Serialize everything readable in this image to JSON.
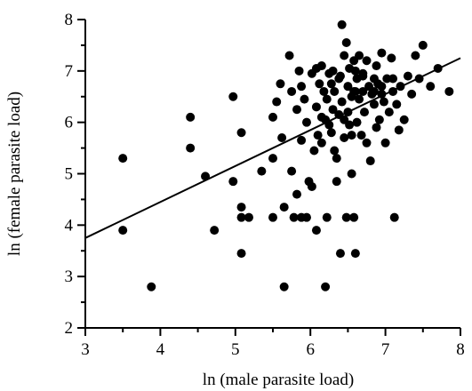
{
  "chart_data": {
    "type": "scatter",
    "title": "",
    "xlabel": "ln (male parasite load)",
    "ylabel": "ln (female parasite load)",
    "xlim": [
      3,
      8
    ],
    "ylim": [
      2,
      8
    ],
    "x_ticks": [
      "3",
      "4",
      "5",
      "6",
      "7",
      "8"
    ],
    "y_ticks": [
      "2",
      "3",
      "4",
      "5",
      "6",
      "7",
      "8"
    ],
    "grid": false,
    "legend": "none",
    "colors": {
      "points": "#000000",
      "axes": "#000000",
      "background": "#ffffff"
    },
    "fit_line": {
      "x": [
        3,
        8
      ],
      "y": [
        3.75,
        7.25
      ]
    },
    "series": [
      {
        "points": [
          [
            3.5,
            5.3
          ],
          [
            3.5,
            3.9
          ],
          [
            3.88,
            2.8
          ],
          [
            4.4,
            6.1
          ],
          [
            4.4,
            5.5
          ],
          [
            4.6,
            4.95
          ],
          [
            4.72,
            3.9
          ],
          [
            4.97,
            6.5
          ],
          [
            4.97,
            4.85
          ],
          [
            5.08,
            5.8
          ],
          [
            5.08,
            4.35
          ],
          [
            5.08,
            3.45
          ],
          [
            5.08,
            4.15
          ],
          [
            5.18,
            4.15
          ],
          [
            5.35,
            5.05
          ],
          [
            5.5,
            6.1
          ],
          [
            5.5,
            5.3
          ],
          [
            5.5,
            4.15
          ],
          [
            5.55,
            6.4
          ],
          [
            5.6,
            6.75
          ],
          [
            5.62,
            5.7
          ],
          [
            5.65,
            4.35
          ],
          [
            5.65,
            2.8
          ],
          [
            5.72,
            7.3
          ],
          [
            5.75,
            6.6
          ],
          [
            5.75,
            5.05
          ],
          [
            5.78,
            4.15
          ],
          [
            5.82,
            6.25
          ],
          [
            5.82,
            4.6
          ],
          [
            5.85,
            7.0
          ],
          [
            5.88,
            6.7
          ],
          [
            5.88,
            5.65
          ],
          [
            5.88,
            4.15
          ],
          [
            5.92,
            6.45
          ],
          [
            5.95,
            6.0
          ],
          [
            5.95,
            4.15
          ],
          [
            5.98,
            4.85
          ],
          [
            6.02,
            6.95
          ],
          [
            6.02,
            4.75
          ],
          [
            6.05,
            5.45
          ],
          [
            6.08,
            7.05
          ],
          [
            6.08,
            6.3
          ],
          [
            6.08,
            3.9
          ],
          [
            6.1,
            5.75
          ],
          [
            6.12,
            6.75
          ],
          [
            6.15,
            7.1
          ],
          [
            6.15,
            6.1
          ],
          [
            6.15,
            5.6
          ],
          [
            6.18,
            6.6
          ],
          [
            6.2,
            2.8
          ],
          [
            6.22,
            6.45
          ],
          [
            6.22,
            4.15
          ],
          [
            6.25,
            6.95
          ],
          [
            6.25,
            5.95
          ],
          [
            6.28,
            6.75
          ],
          [
            6.28,
            5.8
          ],
          [
            6.3,
            6.25
          ],
          [
            6.32,
            5.45
          ],
          [
            6.32,
            6.6
          ],
          [
            6.35,
            5.3
          ],
          [
            6.35,
            4.85
          ],
          [
            6.38,
            6.85
          ],
          [
            6.38,
            6.15
          ],
          [
            6.4,
            3.45
          ],
          [
            6.42,
            7.9
          ],
          [
            6.42,
            6.4
          ],
          [
            6.45,
            7.3
          ],
          [
            6.45,
            5.7
          ],
          [
            6.48,
            7.55
          ],
          [
            6.48,
            4.15
          ],
          [
            6.5,
            6.7
          ],
          [
            6.5,
            6.2
          ],
          [
            6.52,
            7.05
          ],
          [
            6.52,
            5.95
          ],
          [
            6.55,
            6.5
          ],
          [
            6.55,
            5.0
          ],
          [
            6.58,
            7.2
          ],
          [
            6.58,
            6.6
          ],
          [
            6.58,
            4.15
          ],
          [
            6.6,
            3.45
          ],
          [
            6.62,
            6.85
          ],
          [
            6.62,
            6.0
          ],
          [
            6.65,
            7.3
          ],
          [
            6.65,
            6.45
          ],
          [
            6.68,
            5.75
          ],
          [
            6.7,
            6.9
          ],
          [
            6.7,
            6.6
          ],
          [
            6.72,
            6.2
          ],
          [
            6.75,
            7.2
          ],
          [
            6.75,
            5.6
          ],
          [
            6.78,
            6.7
          ],
          [
            6.8,
            5.25
          ],
          [
            6.82,
            6.55
          ],
          [
            6.85,
            6.85
          ],
          [
            6.85,
            6.35
          ],
          [
            6.88,
            7.1
          ],
          [
            6.88,
            5.9
          ],
          [
            6.9,
            6.75
          ],
          [
            6.92,
            6.05
          ],
          [
            6.95,
            6.7
          ],
          [
            6.95,
            7.35
          ],
          [
            6.98,
            6.4
          ],
          [
            7.0,
            5.6
          ],
          [
            7.02,
            6.85
          ],
          [
            7.05,
            6.2
          ],
          [
            7.08,
            7.25
          ],
          [
            7.1,
            6.6
          ],
          [
            7.12,
            4.15
          ],
          [
            7.15,
            6.35
          ],
          [
            7.18,
            5.85
          ],
          [
            7.2,
            6.7
          ],
          [
            7.25,
            6.05
          ],
          [
            7.3,
            6.9
          ],
          [
            7.35,
            6.55
          ],
          [
            7.4,
            7.3
          ],
          [
            7.45,
            6.85
          ],
          [
            7.5,
            7.5
          ],
          [
            7.6,
            6.7
          ],
          [
            7.7,
            7.05
          ],
          [
            7.85,
            6.6
          ],
          [
            6.6,
            6.6
          ],
          [
            6.7,
            6.95
          ],
          [
            6.4,
            6.9
          ],
          [
            6.3,
            7.0
          ],
          [
            6.95,
            6.55
          ],
          [
            6.6,
            7.0
          ],
          [
            6.45,
            6.05
          ],
          [
            6.55,
            5.75
          ],
          [
            6.2,
            6.05
          ],
          [
            6.85,
            6.6
          ],
          [
            7.1,
            6.85
          ]
        ]
      }
    ]
  }
}
